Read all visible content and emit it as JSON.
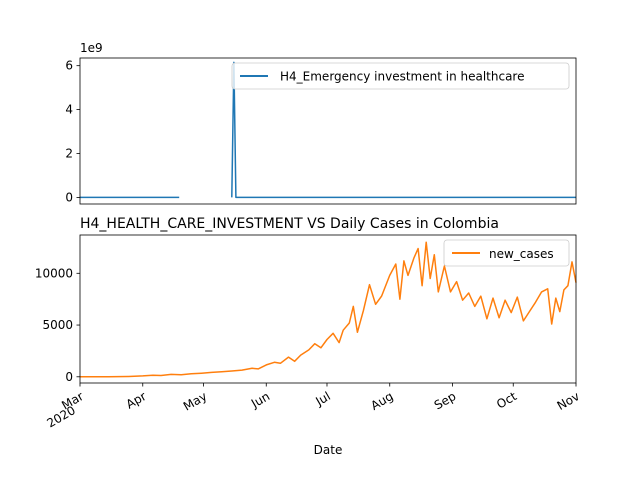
{
  "chart_data": [
    {
      "type": "line",
      "title": "",
      "xlabel": "",
      "ylabel": "",
      "offset_text": "1e9",
      "ylim": [
        -0.3,
        6.35
      ],
      "yticks": [
        0,
        2,
        4,
        6
      ],
      "ytick_labels": [
        "0",
        "2",
        "4",
        "6"
      ],
      "x_dates": [
        "2020-03-01",
        "2020-04-19",
        "2020-04-20",
        "2020-05-15",
        "2020-05-16",
        "2020-05-17",
        "2020-11-01"
      ],
      "series": [
        {
          "name": "H4_Emergency investment in healthcare",
          "color": "#1f77b4",
          "values": [
            0,
            0,
            null,
            0,
            6.15,
            0,
            0
          ]
        }
      ],
      "legend": "top-right",
      "grid": false
    },
    {
      "type": "line",
      "title": "H4_HEALTH_CARE_INVESTMENT VS Daily Cases in Colombia",
      "xlabel": "Date",
      "ylabel": "",
      "ylim": [
        -600,
        13700
      ],
      "yticks": [
        0,
        5000,
        10000
      ],
      "ytick_labels": [
        "0",
        "5000",
        "10000"
      ],
      "xticks": [
        {
          "date": "2020-03-01",
          "label": "Mar",
          "year": "2020"
        },
        {
          "date": "2020-04-01",
          "label": "Apr"
        },
        {
          "date": "2020-05-01",
          "label": "May"
        },
        {
          "date": "2020-06-01",
          "label": "Jun"
        },
        {
          "date": "2020-07-01",
          "label": "Jul"
        },
        {
          "date": "2020-08-01",
          "label": "Aug"
        },
        {
          "date": "2020-09-01",
          "label": "Sep"
        },
        {
          "date": "2020-10-01",
          "label": "Oct"
        },
        {
          "date": "2020-11-01",
          "label": "Nov"
        }
      ],
      "series": [
        {
          "name": "new_cases",
          "color": "#ff7f0e",
          "points": [
            [
              "2020-03-01",
              0
            ],
            [
              "2020-03-15",
              10
            ],
            [
              "2020-03-25",
              30
            ],
            [
              "2020-04-01",
              90
            ],
            [
              "2020-04-06",
              150
            ],
            [
              "2020-04-10",
              120
            ],
            [
              "2020-04-15",
              230
            ],
            [
              "2020-04-20",
              200
            ],
            [
              "2020-04-25",
              290
            ],
            [
              "2020-04-30",
              350
            ],
            [
              "2020-05-05",
              420
            ],
            [
              "2020-05-10",
              490
            ],
            [
              "2020-05-15",
              560
            ],
            [
              "2020-05-20",
              650
            ],
            [
              "2020-05-25",
              820
            ],
            [
              "2020-05-28",
              760
            ],
            [
              "2020-06-01",
              1150
            ],
            [
              "2020-06-05",
              1400
            ],
            [
              "2020-06-08",
              1300
            ],
            [
              "2020-06-12",
              1900
            ],
            [
              "2020-06-15",
              1500
            ],
            [
              "2020-06-18",
              2100
            ],
            [
              "2020-06-22",
              2600
            ],
            [
              "2020-06-25",
              3200
            ],
            [
              "2020-06-28",
              2800
            ],
            [
              "2020-07-01",
              3600
            ],
            [
              "2020-07-04",
              4200
            ],
            [
              "2020-07-07",
              3300
            ],
            [
              "2020-07-09",
              4500
            ],
            [
              "2020-07-12",
              5200
            ],
            [
              "2020-07-14",
              6800
            ],
            [
              "2020-07-16",
              4300
            ],
            [
              "2020-07-19",
              6400
            ],
            [
              "2020-07-22",
              8900
            ],
            [
              "2020-07-25",
              7000
            ],
            [
              "2020-07-28",
              7800
            ],
            [
              "2020-08-01",
              9800
            ],
            [
              "2020-08-04",
              10900
            ],
            [
              "2020-08-06",
              7500
            ],
            [
              "2020-08-08",
              11200
            ],
            [
              "2020-08-10",
              9800
            ],
            [
              "2020-08-13",
              11500
            ],
            [
              "2020-08-15",
              12400
            ],
            [
              "2020-08-17",
              8800
            ],
            [
              "2020-08-19",
              13000
            ],
            [
              "2020-08-21",
              9500
            ],
            [
              "2020-08-23",
              11800
            ],
            [
              "2020-08-25",
              8200
            ],
            [
              "2020-08-28",
              10700
            ],
            [
              "2020-08-31",
              8200
            ],
            [
              "2020-09-03",
              9200
            ],
            [
              "2020-09-06",
              7400
            ],
            [
              "2020-09-09",
              8100
            ],
            [
              "2020-09-12",
              6800
            ],
            [
              "2020-09-15",
              7800
            ],
            [
              "2020-09-18",
              5600
            ],
            [
              "2020-09-21",
              7600
            ],
            [
              "2020-09-24",
              5700
            ],
            [
              "2020-09-27",
              7400
            ],
            [
              "2020-09-30",
              6200
            ],
            [
              "2020-10-03",
              7700
            ],
            [
              "2020-10-06",
              5400
            ],
            [
              "2020-10-09",
              6300
            ],
            [
              "2020-10-12",
              7200
            ],
            [
              "2020-10-15",
              8200
            ],
            [
              "2020-10-18",
              8500
            ],
            [
              "2020-10-20",
              5100
            ],
            [
              "2020-10-22",
              7600
            ],
            [
              "2020-10-24",
              6300
            ],
            [
              "2020-10-26",
              8400
            ],
            [
              "2020-10-28",
              8800
            ],
            [
              "2020-10-30",
              11100
            ],
            [
              "2020-11-01",
              9100
            ]
          ]
        }
      ],
      "legend": "top-right",
      "grid": false
    }
  ]
}
